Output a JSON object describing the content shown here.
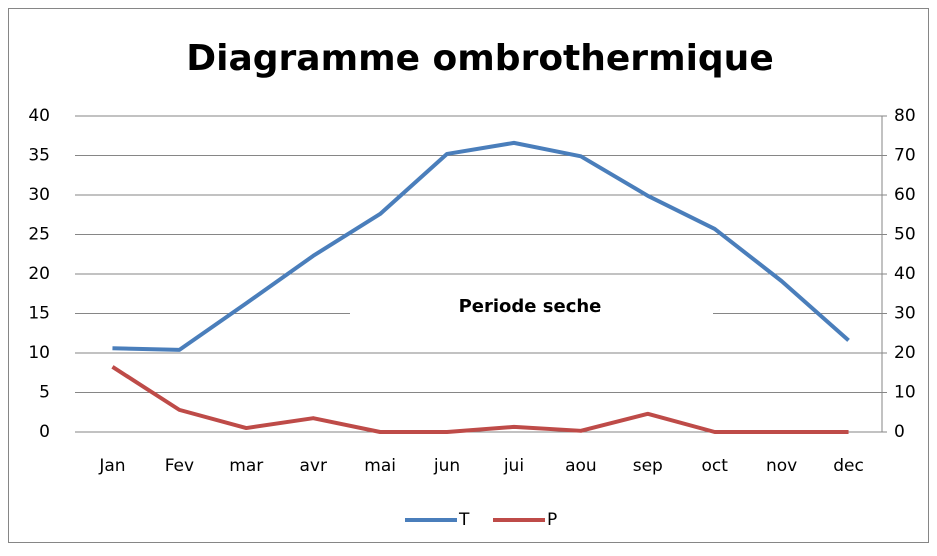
{
  "chart_data": {
    "type": "line",
    "title": "Diagramme ombrothermique",
    "categories": [
      "Jan",
      "Fev",
      "mar",
      "avr",
      "mai",
      "jun",
      "jui",
      "aou",
      "sep",
      "oct",
      "nov",
      "dec"
    ],
    "series": [
      {
        "name": "T",
        "color": "#4a7ebb",
        "values": [
          10.6,
          10.4,
          16.3,
          22.3,
          27.6,
          35.2,
          36.6,
          34.9,
          29.9,
          25.7,
          19.1,
          11.6
        ]
      },
      {
        "name": "P",
        "color": "#be4b48",
        "axis": "y2",
        "values": [
          16.5,
          5.6,
          1,
          3.5,
          0,
          0,
          1.3,
          0.3,
          4.6,
          0,
          0,
          0
        ]
      }
    ],
    "ylim": [
      0,
      40
    ],
    "yticks": [
      0,
      5,
      10,
      15,
      20,
      25,
      30,
      35,
      40
    ],
    "y2lim": [
      0,
      80
    ],
    "y2ticks": [
      0,
      10,
      20,
      30,
      40,
      50,
      60,
      70,
      80
    ],
    "annotation": "Periode seche",
    "grid": true,
    "legend": "bottom"
  }
}
